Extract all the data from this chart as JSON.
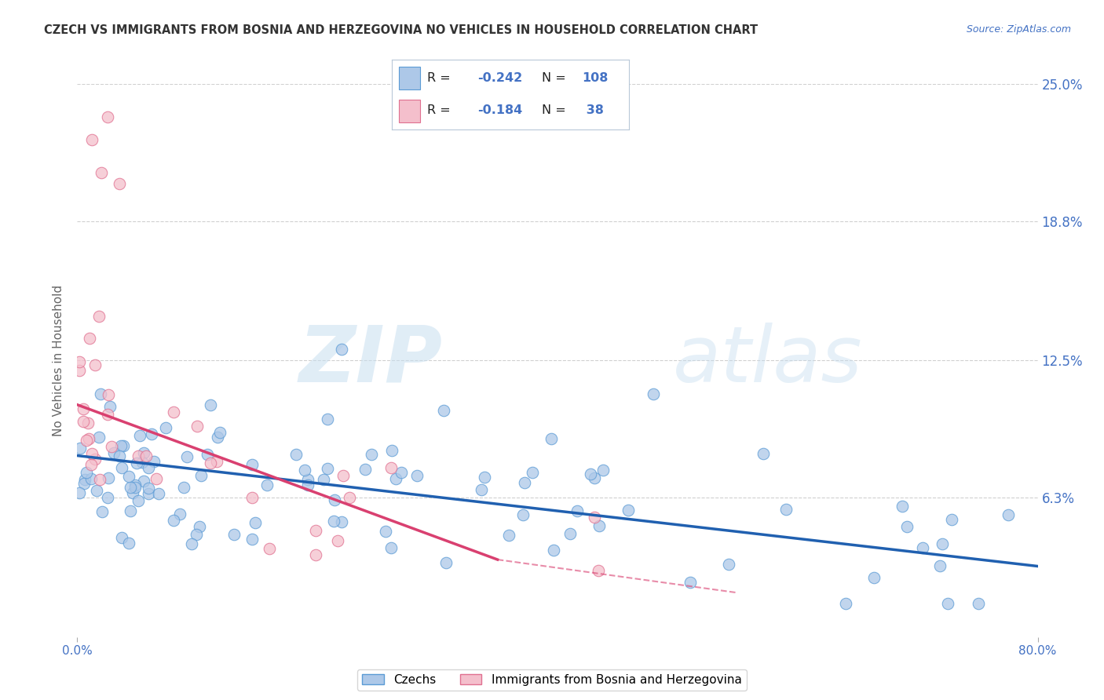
{
  "title": "CZECH VS IMMIGRANTS FROM BOSNIA AND HERZEGOVINA NO VEHICLES IN HOUSEHOLD CORRELATION CHART",
  "source": "Source: ZipAtlas.com",
  "ylabel": "No Vehicles in Household",
  "x_min": 0.0,
  "x_max": 80.0,
  "y_min": 0.0,
  "y_max": 25.0,
  "y_ticks": [
    6.3,
    12.5,
    18.8,
    25.0
  ],
  "x_ticks": [
    0.0,
    80.0
  ],
  "blue_R": -0.242,
  "blue_N": 108,
  "pink_R": -0.184,
  "pink_N": 38,
  "blue_color": "#adc8e8",
  "blue_edge_color": "#5b9bd5",
  "blue_line_color": "#2060b0",
  "pink_color": "#f4bfcc",
  "pink_edge_color": "#e07090",
  "pink_line_color": "#d94070",
  "legend_label_blue": "Czechs",
  "legend_label_pink": "Immigrants from Bosnia and Herzegovina",
  "watermark_zip": "ZIP",
  "watermark_atlas": "atlas",
  "title_color": "#333333",
  "axis_label_color": "#666666",
  "tick_color": "#4472c4",
  "grid_color": "#d0d0d0",
  "background_color": "#ffffff",
  "blue_trend_x0": 0.0,
  "blue_trend_y0": 8.2,
  "blue_trend_x1": 80.0,
  "blue_trend_y1": 3.2,
  "pink_trend_x0": 0.0,
  "pink_trend_y0": 10.5,
  "pink_trend_x1": 35.0,
  "pink_trend_y1": 3.5,
  "pink_dash_x0": 35.0,
  "pink_dash_y0": 3.5,
  "pink_dash_x1": 55.0,
  "pink_dash_y1": 2.0
}
